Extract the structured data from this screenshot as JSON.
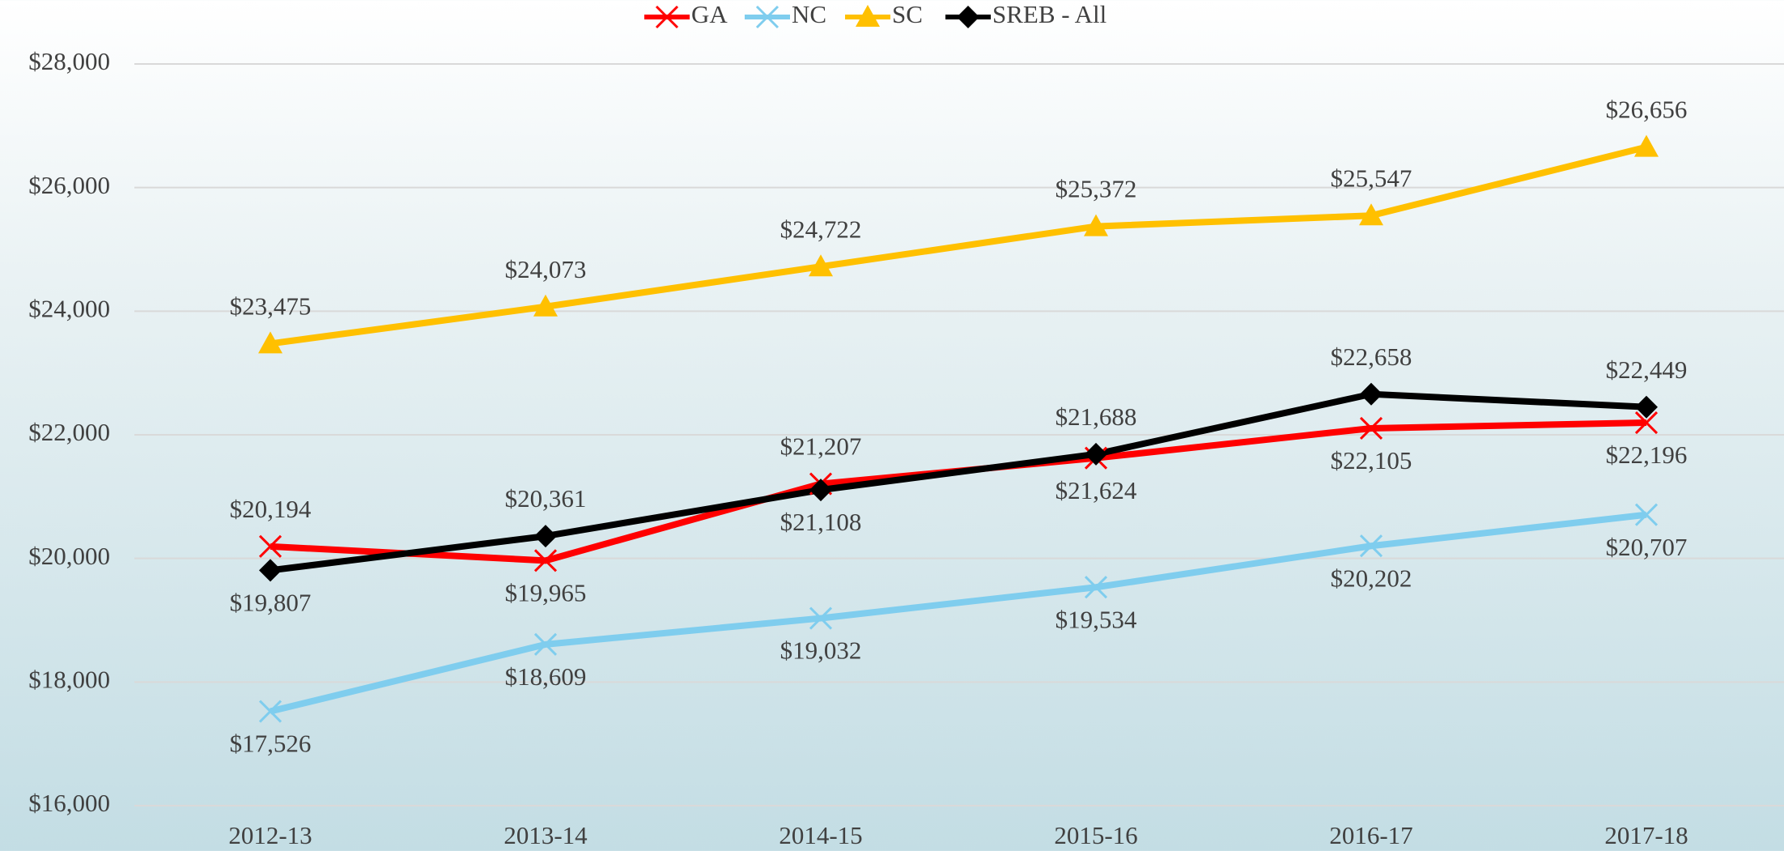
{
  "chart_data": {
    "type": "line",
    "categories": [
      "2012-13",
      "2013-14",
      "2014-15",
      "2015-16",
      "2016-17",
      "2017-18"
    ],
    "series": [
      {
        "name": "GA",
        "color": "#ff0000",
        "marker": "x",
        "values": [
          20194,
          19965,
          21207,
          21624,
          22105,
          22196
        ],
        "value_labels": [
          "$20,194",
          "$19,965",
          "$21,207",
          "$21,624",
          "$22,105",
          "$22,196"
        ]
      },
      {
        "name": "NC",
        "color": "#7fcdee",
        "marker": "x",
        "values": [
          17526,
          18609,
          19032,
          19534,
          20202,
          20707
        ],
        "value_labels": [
          "$17,526",
          "$18,609",
          "$19,032",
          "$19,534",
          "$20,202",
          "$20,707"
        ]
      },
      {
        "name": "SC",
        "color": "#ffc000",
        "marker": "triangle",
        "values": [
          23475,
          24073,
          24722,
          25372,
          25547,
          26656
        ],
        "value_labels": [
          "$23,475",
          "$24,073",
          "$24,722",
          "$25,372",
          "$25,547",
          "$26,656"
        ]
      },
      {
        "name": "SREB - All",
        "color": "#000000",
        "marker": "diamond",
        "values": [
          19807,
          20361,
          21108,
          21688,
          22658,
          22449
        ],
        "value_labels": [
          "$19,807",
          "$20,361",
          "$21,108",
          "$21,688",
          "$22,658",
          "$22,449"
        ]
      }
    ],
    "ylim": [
      16000,
      28000
    ],
    "yticks": [
      {
        "value": 16000,
        "label": "$16,000"
      },
      {
        "value": 18000,
        "label": "$18,000"
      },
      {
        "value": 20000,
        "label": "$20,000"
      },
      {
        "value": 22000,
        "label": "$22,000"
      },
      {
        "value": 24000,
        "label": "$24,000"
      },
      {
        "value": 26000,
        "label": "$26,000"
      },
      {
        "value": 28000,
        "label": "$28,000"
      }
    ],
    "grid": true,
    "legend": "top"
  }
}
